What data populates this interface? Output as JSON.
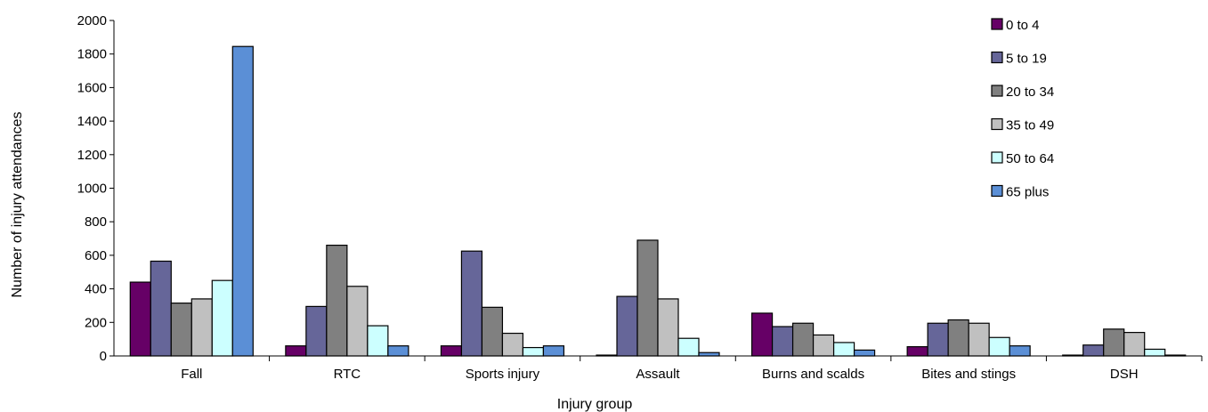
{
  "chart_data": {
    "type": "bar",
    "title": "",
    "xlabel": "Injury group",
    "ylabel": "Number of injury attendances",
    "ylim": [
      0,
      2000
    ],
    "yticks": [
      0,
      200,
      400,
      600,
      800,
      1000,
      1200,
      1400,
      1600,
      1800,
      2000
    ],
    "grid": false,
    "legend_position": "top-right",
    "categories": [
      "Fall",
      "RTC",
      "Sports injury",
      "Assault",
      "Burns and scalds",
      "Bites and stings",
      "DSH"
    ],
    "series": [
      {
        "name": "0 to 4",
        "color": "#660066",
        "values": [
          440,
          60,
          60,
          5,
          255,
          55,
          5
        ]
      },
      {
        "name": "5 to 19",
        "color": "#666699",
        "values": [
          565,
          295,
          625,
          355,
          175,
          195,
          65
        ]
      },
      {
        "name": "20 to 34",
        "color": "#808080",
        "values": [
          315,
          660,
          290,
          690,
          195,
          215,
          160
        ]
      },
      {
        "name": "35 to 49",
        "color": "#c0c0c0",
        "values": [
          340,
          415,
          135,
          340,
          125,
          195,
          140
        ]
      },
      {
        "name": "50 to 64",
        "color": "#ccffff",
        "values": [
          450,
          180,
          50,
          105,
          80,
          110,
          40
        ]
      },
      {
        "name": "65 plus",
        "color": "#5b8fd6",
        "values": [
          1845,
          60,
          60,
          20,
          35,
          60,
          5
        ]
      }
    ]
  }
}
